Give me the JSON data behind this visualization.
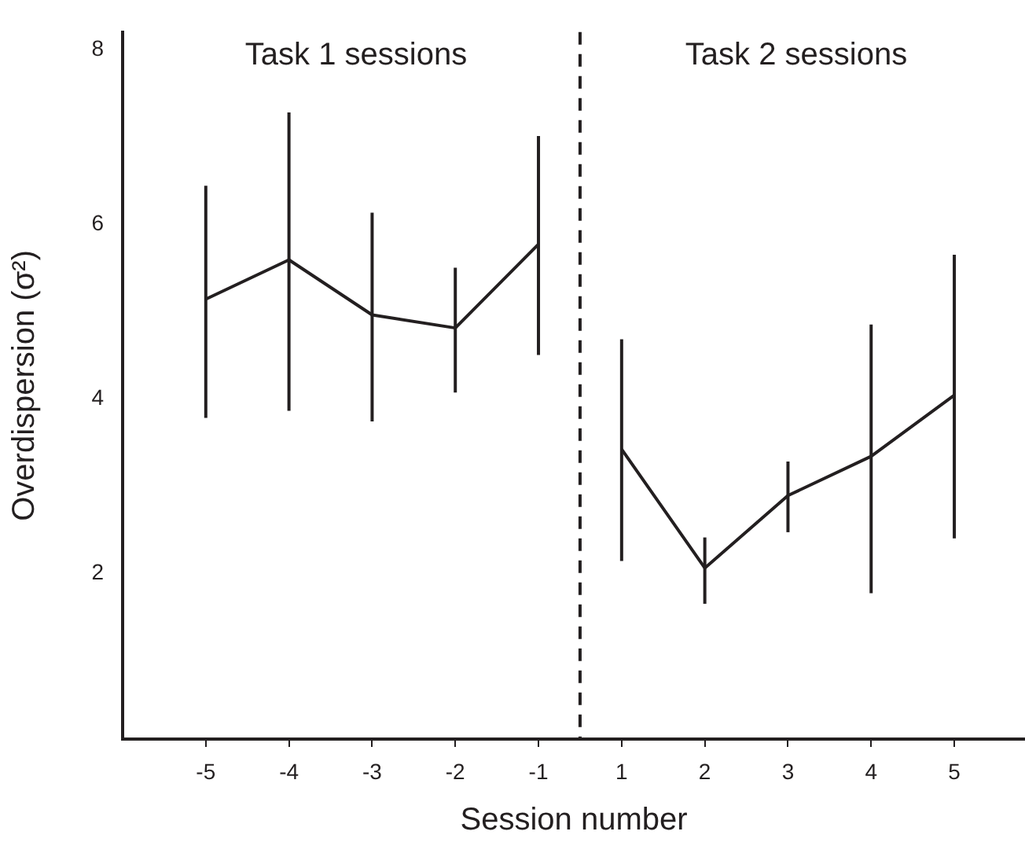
{
  "chart_data": {
    "type": "line",
    "categories": [
      "-5",
      "-4",
      "-3",
      "-2",
      "-1",
      "1",
      "2",
      "3",
      "4",
      "5"
    ],
    "series": [
      {
        "color": "#231f20",
        "values": [
          5.14,
          5.59,
          4.96,
          4.81,
          5.77,
          null,
          null,
          null,
          null,
          null
        ],
        "errors": [
          [
            3.78,
            6.44
          ],
          [
            3.86,
            7.28
          ],
          [
            3.74,
            6.13
          ],
          [
            4.07,
            5.5
          ],
          [
            4.5,
            7.01
          ],
          null,
          null,
          null,
          null,
          null
        ]
      },
      {
        "color": "#231f20",
        "values": [
          null,
          null,
          null,
          null,
          null,
          3.42,
          2.06,
          2.89,
          3.34,
          4.04
        ],
        "errors": [
          null,
          null,
          null,
          null,
          null,
          [
            2.14,
            4.68
          ],
          [
            1.65,
            2.41
          ],
          [
            2.47,
            3.28
          ],
          [
            1.77,
            4.85
          ],
          [
            2.4,
            5.65
          ]
        ]
      }
    ],
    "xlabel": "Session number",
    "ylabel": "Overdispersion (σ²)",
    "ylim": [
      0.1,
      8.2
    ],
    "yticks": [
      2,
      4,
      6,
      8
    ],
    "annotations": [
      "Task 1 sessions",
      "Task 2 sessions"
    ],
    "grid": false,
    "legend": false,
    "marker": "none",
    "line_style": "solid"
  }
}
